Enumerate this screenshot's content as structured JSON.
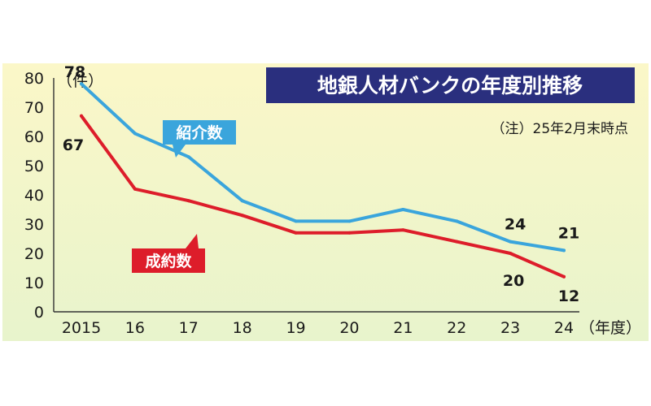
{
  "chart_data": {
    "type": "line",
    "title": "地銀人材バンクの年度別推移",
    "note": "（注）25年2月末時点",
    "y_unit": "（件）",
    "x_unit": "（年度）",
    "x": [
      "2015",
      "16",
      "17",
      "18",
      "19",
      "20",
      "21",
      "22",
      "23",
      "24"
    ],
    "ylim": [
      0,
      80
    ],
    "yticks": [
      0,
      10,
      20,
      30,
      40,
      50,
      60,
      70,
      80
    ],
    "grid": false,
    "legend": "inline",
    "series": [
      {
        "name": "紹介数",
        "color": "#3aa5dc",
        "values": [
          78,
          61,
          53,
          38,
          31,
          31,
          35,
          31,
          24,
          21
        ]
      },
      {
        "name": "成約数",
        "color": "#dd1d2a",
        "values": [
          67,
          42,
          38,
          33,
          27,
          27,
          28,
          24,
          20,
          12
        ]
      }
    ],
    "data_labels": [
      {
        "series": 0,
        "index": 0,
        "text": "78"
      },
      {
        "series": 1,
        "index": 0,
        "text": "67"
      },
      {
        "series": 0,
        "index": 8,
        "text": "24"
      },
      {
        "series": 0,
        "index": 9,
        "text": "21"
      },
      {
        "series": 1,
        "index": 8,
        "text": "20"
      },
      {
        "series": 1,
        "index": 9,
        "text": "12"
      }
    ],
    "colors": {
      "background_top": "#fbf7c8",
      "background_bottom": "#e8f4cc",
      "title_bg": "#2a2f7e"
    }
  }
}
